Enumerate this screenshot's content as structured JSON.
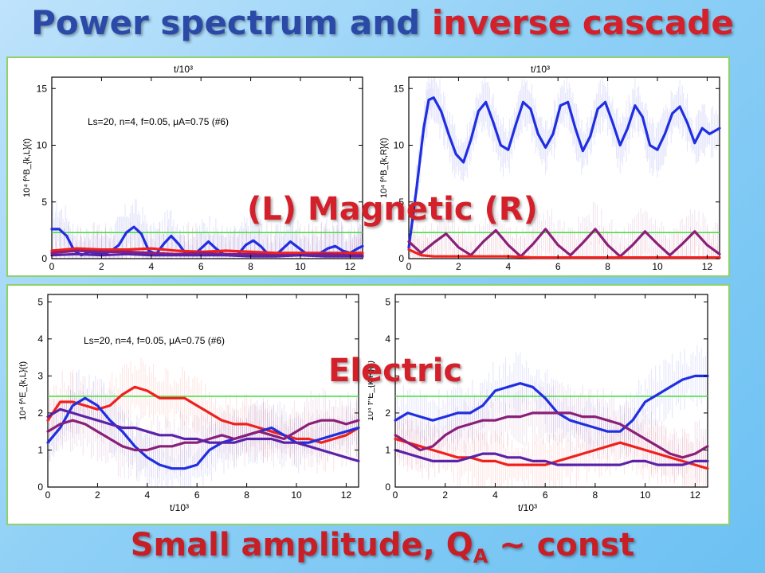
{
  "title": {
    "part1": "Power spectrum and",
    "part2": "inverse cascade"
  },
  "labels": {
    "magnetic": "(L) Magnetic (R)",
    "electric": "Electric"
  },
  "footer": {
    "text1": "Small amplitude, Q",
    "sub": "A",
    "text2": " ~ const"
  },
  "colors": {
    "blue": "#1f2ee0",
    "red": "#f0201c",
    "purple": "#8a1f78",
    "violet": "#5a22a8",
    "green": "#3ee03a",
    "accent_blue": "#2b4aa8",
    "accent_red": "#d4202a"
  },
  "chart_data": [
    {
      "id": "magnetic-left",
      "type": "line",
      "xlabel": "t/10³",
      "ylabel": "10⁴ f^B_{k,L}(t)",
      "xlim": [
        0,
        12.5
      ],
      "ylim": [
        0,
        16
      ],
      "xticks": [
        0,
        2,
        4,
        6,
        8,
        10,
        12
      ],
      "yticks": [
        0,
        5,
        10,
        15
      ],
      "annotation": "Ls=20, n=4, f=0.05, μA=0.75 (#6)",
      "reference_line": 2.3,
      "series": [
        {
          "color": "blue",
          "x": [
            0,
            0.3,
            0.6,
            0.9,
            1.2,
            1.5,
            1.8,
            2.1,
            2.4,
            2.7,
            3.0,
            3.3,
            3.6,
            3.9,
            4.2,
            4.5,
            4.8,
            5.1,
            5.4,
            5.7,
            6.0,
            6.3,
            6.6,
            6.9,
            7.2,
            7.5,
            7.8,
            8.1,
            8.4,
            8.7,
            9.0,
            9.3,
            9.6,
            9.9,
            10.2,
            10.5,
            10.8,
            11.1,
            11.4,
            11.7,
            12.0,
            12.3,
            12.5
          ],
          "y": [
            2.6,
            2.6,
            2.0,
            0.7,
            0.3,
            0.6,
            0.5,
            0.4,
            0.7,
            1.2,
            2.3,
            2.8,
            2.2,
            0.7,
            0.4,
            1.3,
            2.0,
            1.3,
            0.4,
            0.3,
            0.9,
            1.5,
            0.9,
            0.4,
            0.3,
            0.4,
            1.2,
            1.6,
            1.1,
            0.4,
            0.3,
            0.9,
            1.5,
            1.0,
            0.5,
            0.4,
            0.5,
            0.9,
            1.1,
            0.7,
            0.5,
            0.9,
            1.1
          ]
        },
        {
          "color": "red",
          "x": [
            0,
            1,
            2,
            3,
            4,
            5,
            6,
            7,
            8,
            9,
            10,
            11,
            12,
            12.5
          ],
          "y": [
            0.7,
            0.9,
            0.8,
            0.8,
            0.9,
            0.7,
            0.6,
            0.7,
            0.6,
            0.5,
            0.5,
            0.5,
            0.5,
            0.5
          ]
        },
        {
          "color": "purple",
          "x": [
            0,
            1,
            2,
            3,
            4,
            5,
            6,
            7,
            8,
            9,
            10,
            11,
            12,
            12.5
          ],
          "y": [
            0.5,
            0.7,
            0.6,
            0.6,
            0.5,
            0.4,
            0.5,
            0.4,
            0.4,
            0.3,
            0.3,
            0.4,
            0.3,
            0.3
          ]
        },
        {
          "color": "violet",
          "x": [
            0,
            1,
            2,
            3,
            4,
            5,
            6,
            7,
            8,
            9,
            10,
            11,
            12,
            12.5
          ],
          "y": [
            0.3,
            0.4,
            0.3,
            0.4,
            0.3,
            0.3,
            0.3,
            0.3,
            0.2,
            0.2,
            0.3,
            0.2,
            0.2,
            0.2
          ]
        }
      ]
    },
    {
      "id": "magnetic-right",
      "type": "line",
      "xlabel": "t/10³",
      "ylabel": "10⁴ f^B_{k,R}(t)",
      "xlim": [
        0,
        12.5
      ],
      "ylim": [
        0,
        16
      ],
      "xticks": [
        0,
        2,
        4,
        6,
        8,
        10,
        12
      ],
      "yticks": [
        0,
        5,
        10,
        15
      ],
      "reference_line": 2.3,
      "series": [
        {
          "color": "blue",
          "x": [
            0,
            0.3,
            0.6,
            0.8,
            1.0,
            1.3,
            1.6,
            1.9,
            2.2,
            2.5,
            2.8,
            3.1,
            3.4,
            3.7,
            4.0,
            4.3,
            4.6,
            4.9,
            5.2,
            5.5,
            5.8,
            6.1,
            6.4,
            6.7,
            7.0,
            7.3,
            7.6,
            7.9,
            8.2,
            8.5,
            8.8,
            9.1,
            9.4,
            9.7,
            10.0,
            10.3,
            10.6,
            10.9,
            11.2,
            11.5,
            11.8,
            12.1,
            12.5
          ],
          "y": [
            1.0,
            6.0,
            11.5,
            14.0,
            14.2,
            13.0,
            11.0,
            9.2,
            8.5,
            10.5,
            13.0,
            13.8,
            12.0,
            10.0,
            9.6,
            11.8,
            13.8,
            13.2,
            11.0,
            9.8,
            11.0,
            13.5,
            13.8,
            11.5,
            9.5,
            10.8,
            13.2,
            13.8,
            12.0,
            10.0,
            11.5,
            13.5,
            12.5,
            10.0,
            9.6,
            11.0,
            12.8,
            13.4,
            12.0,
            10.2,
            11.5,
            11.0,
            11.5
          ]
        },
        {
          "color": "purple",
          "x": [
            0,
            0.5,
            1,
            1.5,
            2,
            2.5,
            3,
            3.5,
            4,
            4.5,
            5,
            5.5,
            6,
            6.5,
            7,
            7.5,
            8,
            8.5,
            9,
            9.5,
            10,
            10.5,
            11,
            11.5,
            12,
            12.5
          ],
          "y": [
            1.5,
            0.5,
            1.4,
            2.2,
            1.0,
            0.3,
            1.5,
            2.5,
            1.2,
            0.2,
            1.3,
            2.6,
            1.2,
            0.3,
            1.4,
            2.6,
            1.2,
            0.2,
            1.2,
            2.4,
            1.3,
            0.3,
            1.3,
            2.4,
            1.2,
            0.4
          ]
        },
        {
          "color": "red",
          "x": [
            0,
            0.5,
            1,
            2,
            3,
            4,
            5,
            6,
            7,
            8,
            9,
            10,
            11,
            12,
            12.5
          ],
          "y": [
            0.8,
            0.3,
            0.2,
            0.2,
            0.2,
            0.2,
            0.1,
            0.1,
            0.1,
            0.1,
            0.1,
            0.1,
            0.1,
            0.1,
            0.1
          ]
        }
      ]
    },
    {
      "id": "electric-left",
      "type": "line",
      "xlabel": "t/10³",
      "ylabel": "10⁴ f^E_{k,L}(t)",
      "xlim": [
        0,
        12.5
      ],
      "ylim": [
        0,
        5.2
      ],
      "xticks": [
        0,
        2,
        4,
        6,
        8,
        10,
        12
      ],
      "yticks": [
        0,
        1,
        2,
        3,
        4,
        5
      ],
      "annotation": "Ls=20, n=4, f=0.05, μA=0.75 (#6)",
      "reference_line": 2.45,
      "series": [
        {
          "color": "red",
          "x": [
            0,
            0.5,
            1,
            1.5,
            2,
            2.5,
            3,
            3.5,
            4,
            4.5,
            5,
            5.5,
            6,
            6.5,
            7,
            7.5,
            8,
            8.5,
            9,
            9.5,
            10,
            10.5,
            11,
            11.5,
            12,
            12.5
          ],
          "y": [
            1.8,
            2.3,
            2.3,
            2.2,
            2.1,
            2.2,
            2.5,
            2.7,
            2.6,
            2.4,
            2.4,
            2.4,
            2.2,
            2.0,
            1.8,
            1.7,
            1.7,
            1.6,
            1.5,
            1.4,
            1.3,
            1.3,
            1.2,
            1.3,
            1.4,
            1.6
          ]
        },
        {
          "color": "blue",
          "x": [
            0,
            0.5,
            1,
            1.5,
            2,
            2.5,
            3,
            3.5,
            4,
            4.5,
            5,
            5.5,
            6,
            6.5,
            7,
            7.5,
            8,
            8.5,
            9,
            9.5,
            10,
            10.5,
            11,
            11.5,
            12,
            12.5
          ],
          "y": [
            1.2,
            1.6,
            2.2,
            2.4,
            2.2,
            1.8,
            1.5,
            1.1,
            0.8,
            0.6,
            0.5,
            0.5,
            0.6,
            1.0,
            1.2,
            1.3,
            1.4,
            1.5,
            1.6,
            1.4,
            1.2,
            1.2,
            1.3,
            1.4,
            1.5,
            1.6
          ]
        },
        {
          "color": "purple",
          "x": [
            0,
            0.5,
            1,
            1.5,
            2,
            2.5,
            3,
            3.5,
            4,
            4.5,
            5,
            5.5,
            6,
            6.5,
            7,
            7.5,
            8,
            8.5,
            9,
            9.5,
            10,
            10.5,
            11,
            11.5,
            12,
            12.5
          ],
          "y": [
            1.5,
            1.7,
            1.8,
            1.7,
            1.5,
            1.3,
            1.1,
            1.0,
            1.0,
            1.1,
            1.1,
            1.2,
            1.2,
            1.3,
            1.4,
            1.3,
            1.4,
            1.5,
            1.4,
            1.3,
            1.5,
            1.7,
            1.8,
            1.8,
            1.7,
            1.8
          ]
        },
        {
          "color": "violet",
          "x": [
            0,
            0.5,
            1,
            1.5,
            2,
            2.5,
            3,
            3.5,
            4,
            4.5,
            5,
            5.5,
            6,
            6.5,
            7,
            7.5,
            8,
            8.5,
            9,
            9.5,
            10,
            10.5,
            11,
            11.5,
            12,
            12.5
          ],
          "y": [
            1.9,
            2.1,
            2.0,
            1.9,
            1.8,
            1.7,
            1.6,
            1.6,
            1.5,
            1.4,
            1.4,
            1.3,
            1.3,
            1.2,
            1.2,
            1.2,
            1.3,
            1.3,
            1.3,
            1.2,
            1.2,
            1.1,
            1.0,
            0.9,
            0.8,
            0.7
          ]
        }
      ]
    },
    {
      "id": "electric-right",
      "type": "line",
      "xlabel": "t/10³",
      "ylabel": "10⁴ f^E_{k,R}(t)",
      "xlim": [
        0,
        12.5
      ],
      "ylim": [
        0,
        5.2
      ],
      "xticks": [
        0,
        2,
        4,
        6,
        8,
        10,
        12
      ],
      "yticks": [
        0,
        1,
        2,
        3,
        4,
        5
      ],
      "reference_line": 2.45,
      "series": [
        {
          "color": "blue",
          "x": [
            0,
            0.5,
            1,
            1.5,
            2,
            2.5,
            3,
            3.5,
            4,
            4.5,
            5,
            5.5,
            6,
            6.5,
            7,
            7.5,
            8,
            8.5,
            9,
            9.5,
            10,
            10.5,
            11,
            11.5,
            12,
            12.5
          ],
          "y": [
            1.8,
            2.0,
            1.9,
            1.8,
            1.9,
            2.0,
            2.0,
            2.2,
            2.6,
            2.7,
            2.8,
            2.7,
            2.4,
            2.0,
            1.8,
            1.7,
            1.6,
            1.5,
            1.5,
            1.8,
            2.3,
            2.5,
            2.7,
            2.9,
            3.0,
            3.0
          ]
        },
        {
          "color": "red",
          "x": [
            0,
            0.5,
            1,
            1.5,
            2,
            2.5,
            3,
            3.5,
            4,
            4.5,
            5,
            5.5,
            6,
            6.5,
            7,
            7.5,
            8,
            8.5,
            9,
            9.5,
            10,
            10.5,
            11,
            11.5,
            12,
            12.5
          ],
          "y": [
            1.3,
            1.2,
            1.1,
            1.0,
            0.9,
            0.8,
            0.8,
            0.7,
            0.7,
            0.6,
            0.6,
            0.6,
            0.6,
            0.7,
            0.8,
            0.9,
            1.0,
            1.1,
            1.2,
            1.1,
            1.0,
            0.9,
            0.8,
            0.7,
            0.6,
            0.5
          ]
        },
        {
          "color": "purple",
          "x": [
            0,
            0.5,
            1,
            1.5,
            2,
            2.5,
            3,
            3.5,
            4,
            4.5,
            5,
            5.5,
            6,
            6.5,
            7,
            7.5,
            8,
            8.5,
            9,
            9.5,
            10,
            10.5,
            11,
            11.5,
            12,
            12.5
          ],
          "y": [
            1.4,
            1.2,
            1.0,
            1.1,
            1.4,
            1.6,
            1.7,
            1.8,
            1.8,
            1.9,
            1.9,
            2.0,
            2.0,
            2.0,
            2.0,
            1.9,
            1.9,
            1.8,
            1.7,
            1.5,
            1.3,
            1.1,
            0.9,
            0.8,
            0.9,
            1.1
          ]
        },
        {
          "color": "violet",
          "x": [
            0,
            0.5,
            1,
            1.5,
            2,
            2.5,
            3,
            3.5,
            4,
            4.5,
            5,
            5.5,
            6,
            6.5,
            7,
            7.5,
            8,
            8.5,
            9,
            9.5,
            10,
            10.5,
            11,
            11.5,
            12,
            12.5
          ],
          "y": [
            1.0,
            0.9,
            0.8,
            0.7,
            0.7,
            0.7,
            0.8,
            0.9,
            0.9,
            0.8,
            0.8,
            0.7,
            0.7,
            0.6,
            0.6,
            0.6,
            0.6,
            0.6,
            0.6,
            0.7,
            0.7,
            0.6,
            0.6,
            0.6,
            0.7,
            0.7
          ]
        }
      ]
    }
  ]
}
